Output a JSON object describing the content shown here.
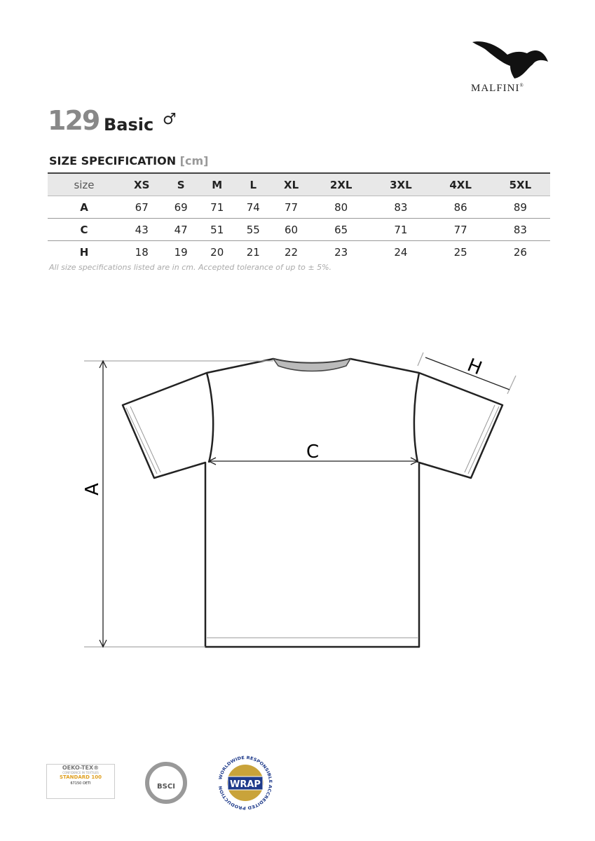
{
  "brand": {
    "name": "MALFINI",
    "registered": "®"
  },
  "product": {
    "number": "129",
    "name": "Basic",
    "gender_symbol": "♂"
  },
  "spec": {
    "title": "SIZE SPECIFICATION",
    "unit": "[cm]"
  },
  "table": {
    "headers": [
      "size",
      "XS",
      "S",
      "M",
      "L",
      "XL",
      "2XL",
      "3XL",
      "4XL",
      "5XL"
    ],
    "rows": [
      {
        "label": "A",
        "values": [
          "67",
          "69",
          "71",
          "74",
          "77",
          "80",
          "83",
          "86",
          "89"
        ]
      },
      {
        "label": "C",
        "values": [
          "43",
          "47",
          "51",
          "55",
          "60",
          "65",
          "71",
          "77",
          "83"
        ]
      },
      {
        "label": "H",
        "values": [
          "18",
          "19",
          "20",
          "21",
          "22",
          "23",
          "24",
          "25",
          "26"
        ]
      }
    ]
  },
  "note": "All size specifications listed are in cm. Accepted tolerance of up to ± 5%.",
  "diagram": {
    "label_a": "A",
    "label_c": "C",
    "label_h": "H"
  },
  "certs": {
    "oeko": {
      "title": "OEKO-TEX®",
      "sub": "CONFIDENCE IN TEXTILES",
      "standard": "STANDARD 100",
      "code": "67150 OETI"
    },
    "bsci": {
      "name": "BSCI"
    },
    "wrap": {
      "name": "WRAP",
      "ring": "WORLDWIDE RESPONSIBLE ACCREDITED PRODUCTION"
    }
  }
}
